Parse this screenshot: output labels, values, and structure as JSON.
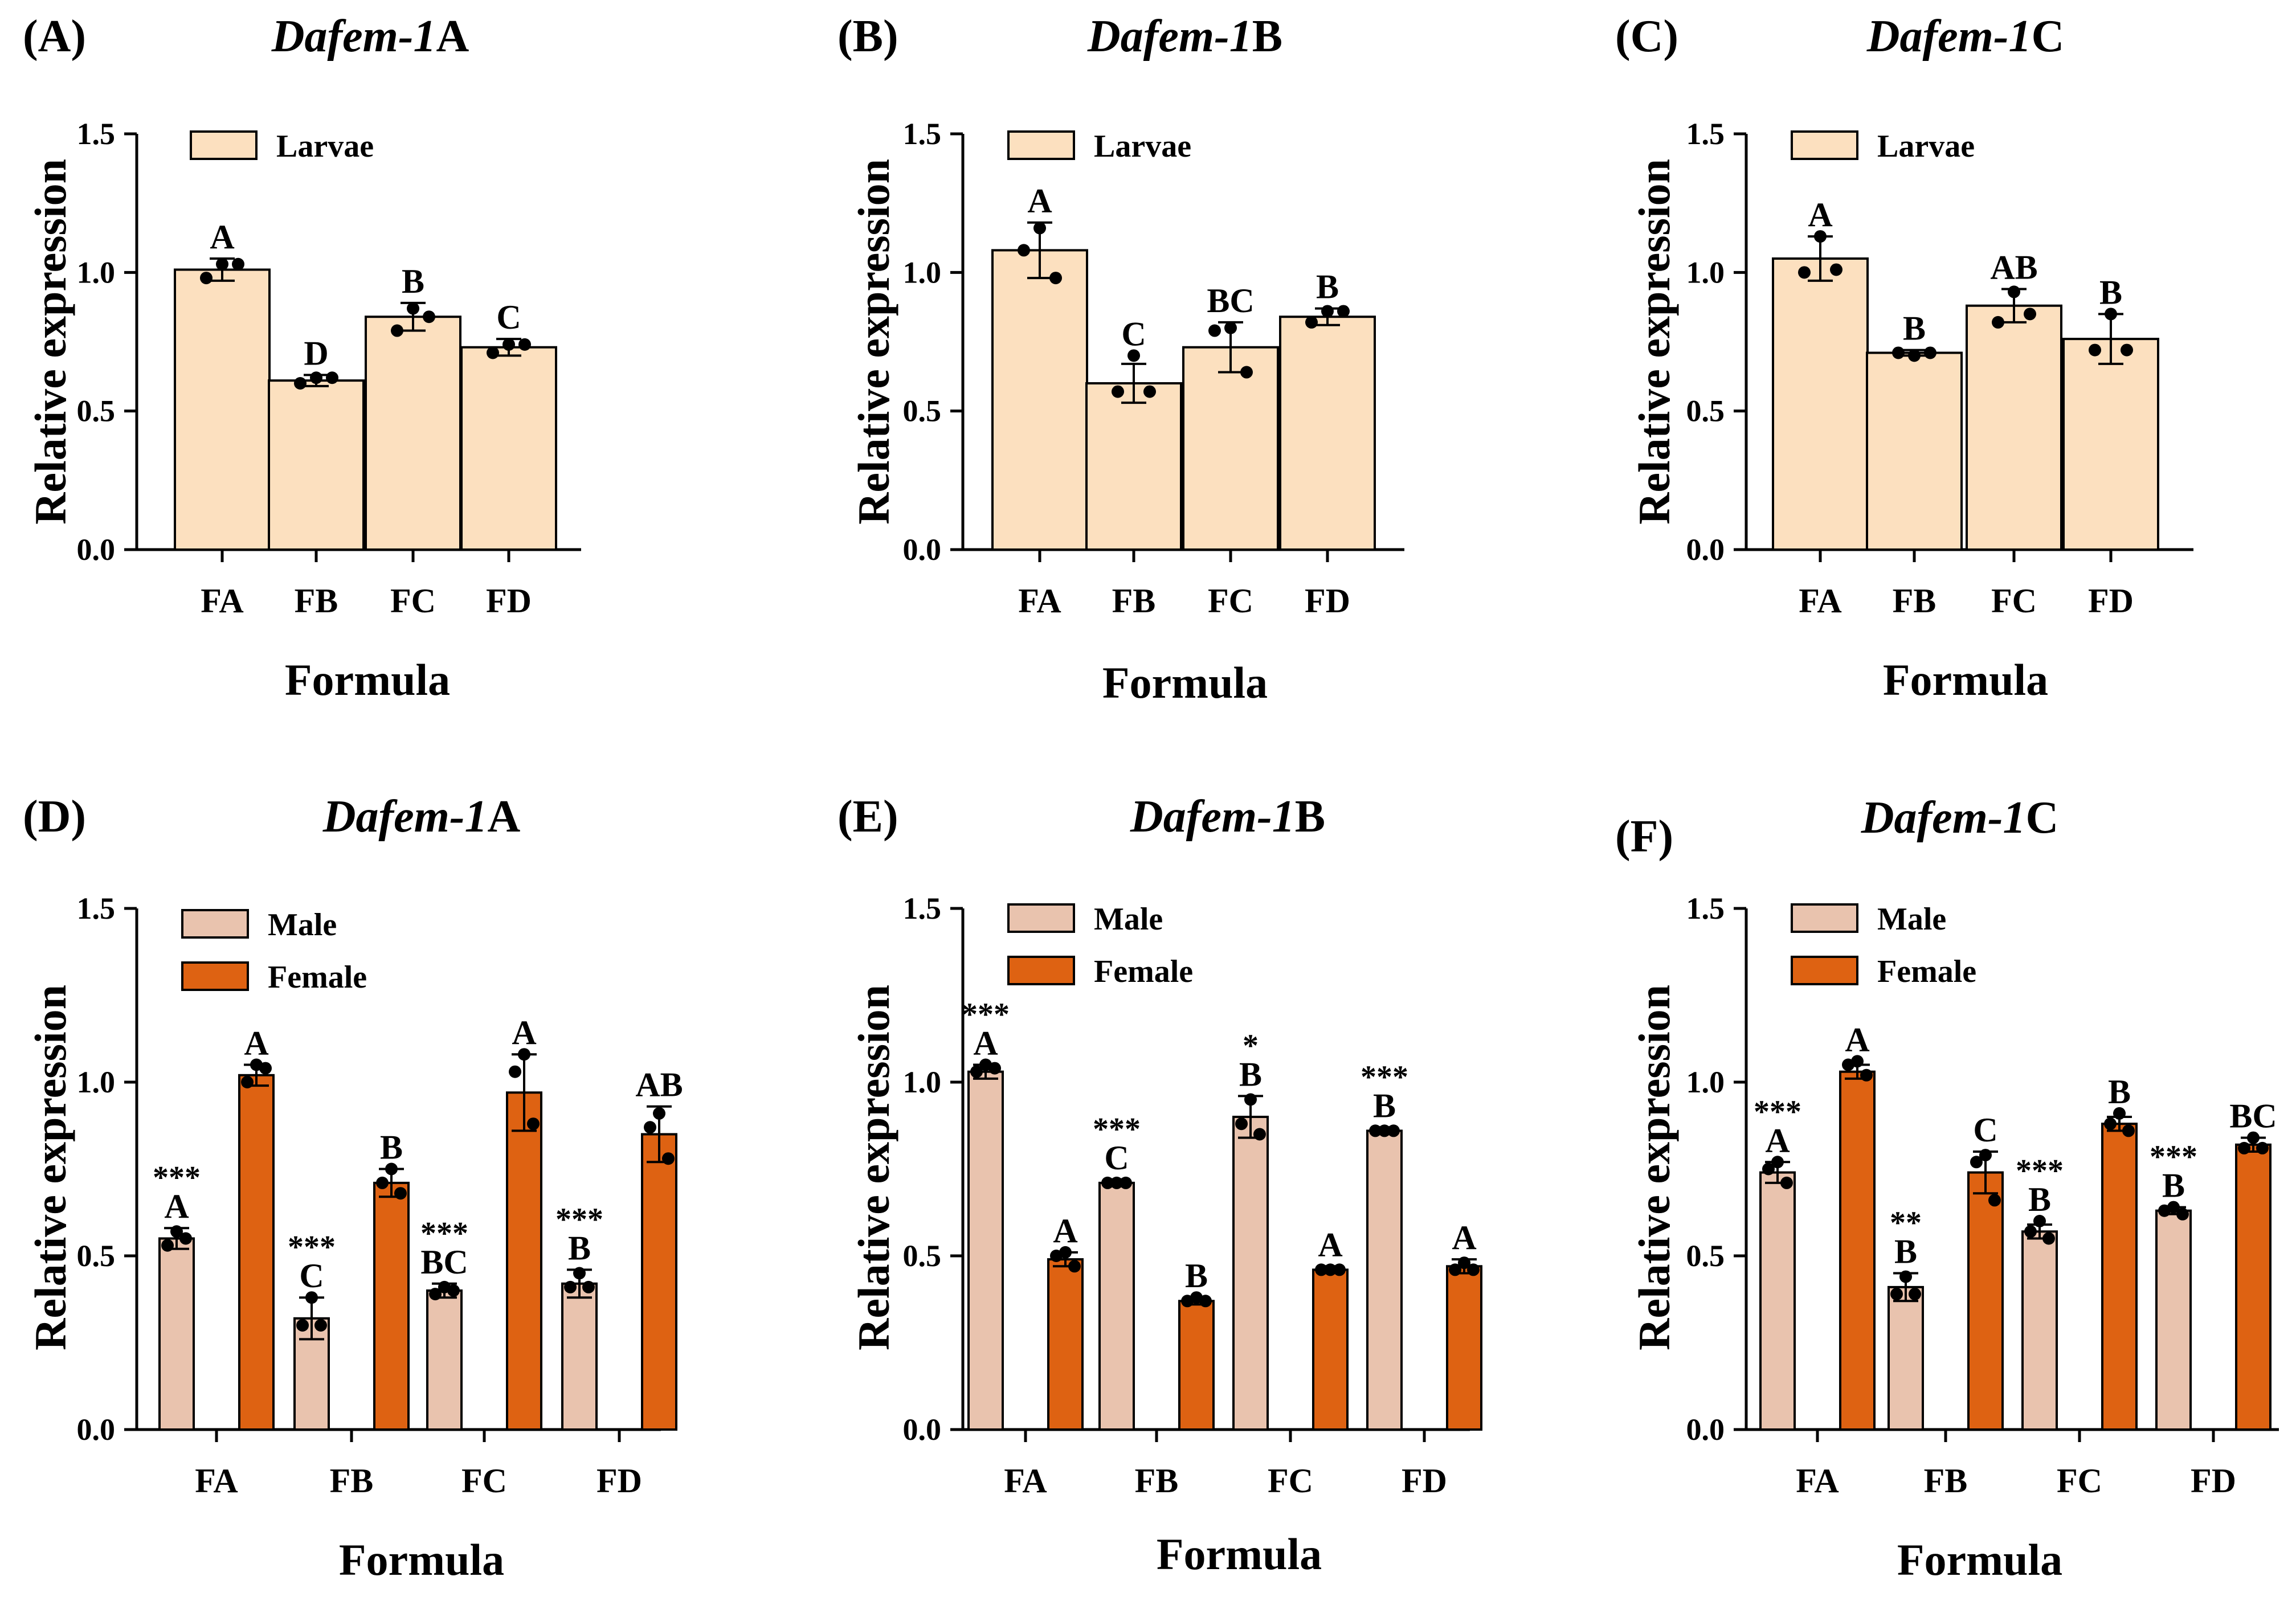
{
  "colors": {
    "larvae": "#FCE0BF",
    "male": "#E9C3AE",
    "female": "#DE6212",
    "axis": "#000000"
  },
  "chart_data": [
    {
      "panel": "(A)",
      "title_italic": "Dafem-1",
      "title_suffix": "A",
      "type": "bar",
      "xlabel": "Formula",
      "ylabel": "Relative expression",
      "ylim": [
        0,
        1.5
      ],
      "yticks": [
        "0.0",
        "0.5",
        "1.0",
        "1.5"
      ],
      "categories": [
        "FA",
        "FB",
        "FC",
        "FD"
      ],
      "series": [
        {
          "name": "Larvae",
          "color_key": "larvae",
          "values": [
            1.01,
            0.61,
            0.84,
            0.73
          ],
          "errors": [
            0.04,
            0.02,
            0.05,
            0.03
          ],
          "points": [
            [
              1.03,
              0.98,
              1.03
            ],
            [
              0.62,
              0.6,
              0.62
            ],
            [
              0.87,
              0.79,
              0.84
            ],
            [
              0.74,
              0.71,
              0.74
            ]
          ],
          "letters": [
            "A",
            "D",
            "B",
            "C"
          ],
          "stars": [
            "",
            "",
            "",
            ""
          ]
        }
      ]
    },
    {
      "panel": "(B)",
      "title_italic": "Dafem-1",
      "title_suffix": "B",
      "type": "bar",
      "xlabel": "Formula",
      "ylabel": "Relative expression",
      "ylim": [
        0,
        1.5
      ],
      "yticks": [
        "0.0",
        "0.5",
        "1.0",
        "1.5"
      ],
      "categories": [
        "FA",
        "FB",
        "FC",
        "FD"
      ],
      "series": [
        {
          "name": "Larvae",
          "color_key": "larvae",
          "values": [
            1.08,
            0.6,
            0.73,
            0.84
          ],
          "errors": [
            0.1,
            0.07,
            0.09,
            0.03
          ],
          "points": [
            [
              1.16,
              1.08,
              0.98
            ],
            [
              0.7,
              0.57,
              0.57
            ],
            [
              0.8,
              0.79,
              0.64
            ],
            [
              0.86,
              0.82,
              0.86
            ]
          ],
          "letters": [
            "A",
            "C",
            "BC",
            "B"
          ],
          "stars": [
            "",
            "",
            "",
            ""
          ]
        }
      ]
    },
    {
      "panel": "(C)",
      "title_italic": "Dafem-1",
      "title_suffix": "C",
      "type": "bar",
      "xlabel": "Formula",
      "ylabel": "Relative expression",
      "ylim": [
        0,
        1.5
      ],
      "yticks": [
        "0.0",
        "0.5",
        "1.0",
        "1.5"
      ],
      "categories": [
        "FA",
        "FB",
        "FC",
        "FD"
      ],
      "series": [
        {
          "name": "Larvae",
          "color_key": "larvae",
          "values": [
            1.05,
            0.71,
            0.88,
            0.76
          ],
          "errors": [
            0.08,
            0.01,
            0.06,
            0.09
          ],
          "points": [
            [
              1.13,
              1.0,
              1.01
            ],
            [
              0.7,
              0.71,
              0.71
            ],
            [
              0.93,
              0.82,
              0.85
            ],
            [
              0.85,
              0.72,
              0.72
            ]
          ],
          "letters": [
            "A",
            "B",
            "AB",
            "B"
          ],
          "stars": [
            "",
            "",
            "",
            ""
          ]
        }
      ]
    },
    {
      "panel": "(D)",
      "title_italic": "Dafem-1",
      "title_suffix": "A",
      "type": "bar",
      "xlabel": "Formula",
      "ylabel": "Relative expression",
      "ylim": [
        0,
        1.5
      ],
      "yticks": [
        "0.0",
        "0.5",
        "1.0",
        "1.5"
      ],
      "categories": [
        "FA",
        "FB",
        "FC",
        "FD"
      ],
      "series": [
        {
          "name": "Male",
          "color_key": "male",
          "values": [
            0.55,
            0.32,
            0.4,
            0.42
          ],
          "errors": [
            0.03,
            0.06,
            0.02,
            0.04
          ],
          "points": [
            [
              0.57,
              0.53,
              0.55
            ],
            [
              0.38,
              0.3,
              0.3
            ],
            [
              0.41,
              0.39,
              0.4
            ],
            [
              0.45,
              0.41,
              0.41
            ]
          ],
          "letters": [
            "A",
            "C",
            "BC",
            "B"
          ],
          "stars": [
            "***",
            "***",
            "***",
            "***"
          ]
        },
        {
          "name": "Female",
          "color_key": "female",
          "values": [
            1.02,
            0.71,
            0.97,
            0.85
          ],
          "errors": [
            0.03,
            0.04,
            0.11,
            0.08
          ],
          "points": [
            [
              1.05,
              1.0,
              1.04
            ],
            [
              0.75,
              0.71,
              0.68
            ],
            [
              1.08,
              1.03,
              0.88
            ],
            [
              0.91,
              0.87,
              0.78
            ]
          ],
          "letters": [
            "A",
            "B",
            "A",
            "AB"
          ],
          "stars": [
            "",
            "",
            "",
            ""
          ]
        }
      ]
    },
    {
      "panel": "(E)",
      "title_italic": "Dafem-1",
      "title_suffix": "B",
      "type": "bar",
      "xlabel": "Formula",
      "ylabel": "Relative expression",
      "ylim": [
        0,
        1.5
      ],
      "yticks": [
        "0.0",
        "0.5",
        "1.0",
        "1.5"
      ],
      "categories": [
        "FA",
        "FB",
        "FC",
        "FD"
      ],
      "series": [
        {
          "name": "Male",
          "color_key": "male",
          "values": [
            1.03,
            0.71,
            0.9,
            0.86
          ],
          "errors": [
            0.02,
            0.01,
            0.06,
            0.01
          ],
          "points": [
            [
              1.05,
              1.03,
              1.04
            ],
            [
              0.71,
              0.71,
              0.71
            ],
            [
              0.95,
              0.88,
              0.85
            ],
            [
              0.86,
              0.86,
              0.86
            ]
          ],
          "letters": [
            "A",
            "C",
            "B",
            "B"
          ],
          "stars": [
            "***",
            "***",
            "*",
            "***"
          ]
        },
        {
          "name": "Female",
          "color_key": "female",
          "values": [
            0.49,
            0.37,
            0.46,
            0.47
          ],
          "errors": [
            0.02,
            0.01,
            0.01,
            0.02
          ],
          "points": [
            [
              0.51,
              0.5,
              0.47
            ],
            [
              0.38,
              0.37,
              0.37
            ],
            [
              0.46,
              0.46,
              0.46
            ],
            [
              0.48,
              0.46,
              0.46
            ]
          ],
          "letters": [
            "A",
            "B",
            "A",
            "A"
          ],
          "stars": [
            "",
            "",
            "",
            ""
          ]
        }
      ]
    },
    {
      "panel": "(F)",
      "title_italic": "Dafem-1",
      "title_suffix": "C",
      "type": "bar",
      "xlabel": "Formula",
      "ylabel": "Relative expression",
      "ylim": [
        0,
        1.5
      ],
      "yticks": [
        "0.0",
        "0.5",
        "1.0",
        "1.5"
      ],
      "categories": [
        "FA",
        "FB",
        "FC",
        "FD"
      ],
      "series": [
        {
          "name": "Male",
          "color_key": "male",
          "values": [
            0.74,
            0.41,
            0.57,
            0.63
          ],
          "errors": [
            0.03,
            0.04,
            0.02,
            0.01
          ],
          "points": [
            [
              0.77,
              0.75,
              0.71
            ],
            [
              0.44,
              0.39,
              0.39
            ],
            [
              0.6,
              0.57,
              0.55
            ],
            [
              0.64,
              0.63,
              0.62
            ]
          ],
          "letters": [
            "A",
            "B",
            "B",
            "B"
          ],
          "stars": [
            "***",
            "**",
            "***",
            "***"
          ]
        },
        {
          "name": "Female",
          "color_key": "female",
          "values": [
            1.03,
            0.74,
            0.88,
            0.82
          ],
          "errors": [
            0.02,
            0.06,
            0.02,
            0.02
          ],
          "points": [
            [
              1.06,
              1.05,
              1.02
            ],
            [
              0.79,
              0.77,
              0.66
            ],
            [
              0.91,
              0.88,
              0.86
            ],
            [
              0.84,
              0.81,
              0.81
            ]
          ],
          "letters": [
            "A",
            "C",
            "B",
            "BC"
          ],
          "stars": [
            "",
            "",
            "",
            ""
          ]
        }
      ]
    }
  ]
}
